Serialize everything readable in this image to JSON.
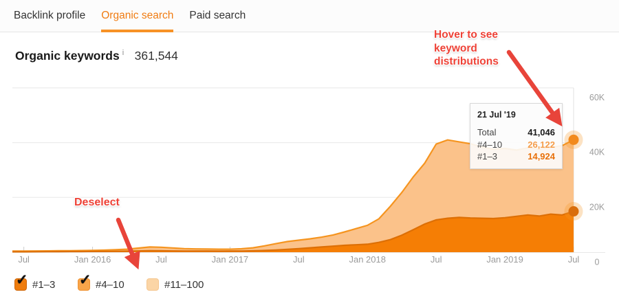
{
  "tabs": {
    "items": [
      {
        "label": "Backlink profile",
        "active": false
      },
      {
        "label": "Organic search",
        "active": true
      },
      {
        "label": "Paid search",
        "active": false
      }
    ],
    "active_color": "#f07c12"
  },
  "header": {
    "title": "Organic keywords",
    "info_icon": "i",
    "count": "361,544"
  },
  "annotations": {
    "color": "#ee4237",
    "hover_note": {
      "line1": "Hover to see",
      "line2": "keyword",
      "line3": "distributions"
    },
    "deselect_note": "Deselect"
  },
  "tooltip": {
    "date": "21 Jul '19",
    "rows": [
      {
        "label": "Total",
        "value": "41,046",
        "color": "#1a1a1a"
      },
      {
        "label": "#4–10",
        "value": "26,122",
        "color": "#f59d4a"
      },
      {
        "label": "#1–3",
        "value": "14,924",
        "color": "#e8700a"
      }
    ]
  },
  "legend": {
    "items": [
      {
        "label": "#1–3",
        "checked": true,
        "fill": "#ef7d0e",
        "border": "#cf6607"
      },
      {
        "label": "#4–10",
        "checked": true,
        "fill": "#f9a54a",
        "border": "#ef9130"
      },
      {
        "label": "#11–100",
        "checked": false,
        "fill": "#fbd5a6",
        "border": "#f5c68f"
      }
    ]
  },
  "chart_data": {
    "type": "area",
    "stacked": true,
    "title": "Organic keywords",
    "x_range": "Jun 2015 – 21 Jul 2019 (monthly points, last point 21 Jul '19)",
    "x_tick_labels": [
      "Jul",
      "Jan 2016",
      "Jul",
      "Jan 2017",
      "Jul",
      "Jan 2018",
      "Jul",
      "Jan 2019",
      "Jul"
    ],
    "x_tick_indices": [
      1,
      7,
      13,
      19,
      25,
      31,
      37,
      43,
      49
    ],
    "y_tick_labels": [
      "60K",
      "40K",
      "20K",
      "0"
    ],
    "y_tick_values": [
      60000,
      40000,
      20000,
      0
    ],
    "y_max": 60000,
    "grid": true,
    "legend_position": "bottom",
    "series": [
      {
        "name": "#1–3",
        "fill": "#f57e05",
        "line": "#dd6f05",
        "values": [
          150,
          160,
          180,
          200,
          220,
          240,
          260,
          280,
          300,
          330,
          380,
          450,
          520,
          500,
          460,
          420,
          400,
          390,
          380,
          390,
          420,
          500,
          620,
          800,
          1050,
          1300,
          1600,
          1900,
          2200,
          2500,
          2700,
          2900,
          3600,
          4600,
          6200,
          8200,
          10300,
          11800,
          12400,
          12700,
          12500,
          12400,
          12300,
          12600,
          13100,
          13600,
          13200,
          13900,
          13600,
          14924
        ]
      },
      {
        "name": "#4–10",
        "fill": "#fbc28a",
        "line": "#f5941f",
        "values": [
          250,
          260,
          270,
          280,
          300,
          320,
          340,
          370,
          450,
          570,
          720,
          1050,
          1380,
          1300,
          1090,
          880,
          800,
          760,
          720,
          710,
          830,
          1100,
          1680,
          2300,
          2850,
          3100,
          3300,
          3600,
          4100,
          4900,
          5900,
          6900,
          8600,
          12200,
          15600,
          19300,
          22200,
          27700,
          28600,
          27600,
          27100,
          26000,
          25300,
          25300,
          24200,
          24500,
          24400,
          24400,
          25300,
          26122
        ]
      }
    ],
    "end_markers": [
      {
        "label": "Total",
        "value": 41046,
        "color": "#f28a1d"
      },
      {
        "label": "#1–3",
        "value": 14924,
        "color": "#d96e0c"
      }
    ]
  }
}
